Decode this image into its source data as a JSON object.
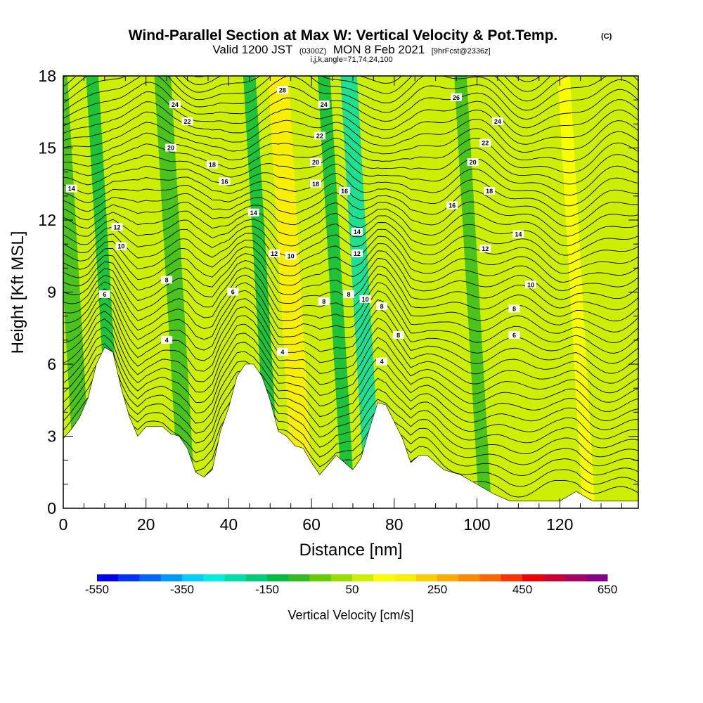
{
  "title": {
    "main": "Wind-Parallel Section at Max W: Vertical Velocity & Pot.Temp.",
    "copyright": "(C)",
    "valid_prefix": "Valid 1200 JST",
    "valid_utc": "(0300Z)",
    "valid_date": "MON 8 Feb 2021",
    "forecast": "[9hrFcst@2336z]",
    "params": "i,j,k,angle=71,74,24,100"
  },
  "chart_data": {
    "type": "heatmap",
    "xlabel": "Distance [nm]",
    "ylabel": "Height [Kft MSL]",
    "xlim": [
      0,
      139
    ],
    "ylim": [
      0,
      18
    ],
    "x_ticks": [
      "0",
      "20",
      "40",
      "60",
      "80",
      "100",
      "120"
    ],
    "x_tick_values": [
      0,
      20,
      40,
      60,
      80,
      100,
      120
    ],
    "y_ticks": [
      "0",
      "3",
      "6",
      "9",
      "12",
      "15",
      "18"
    ],
    "y_tick_values": [
      0,
      3,
      6,
      9,
      12,
      15,
      18
    ],
    "terrain_profile": {
      "distance_nm": [
        0,
        2,
        4,
        6,
        8,
        10,
        12,
        14,
        16,
        18,
        20,
        22,
        24,
        26,
        28,
        30,
        32,
        34,
        36,
        38,
        40,
        42,
        44,
        46,
        48,
        50,
        52,
        54,
        56,
        58,
        60,
        62,
        64,
        66,
        68,
        70,
        72,
        74,
        76,
        78,
        80,
        82,
        84,
        86,
        88,
        90,
        92,
        94,
        96,
        98,
        100,
        104,
        108,
        112,
        116,
        120,
        124,
        128,
        132,
        136,
        139
      ],
      "height_kft": [
        2.9,
        3.3,
        3.8,
        4.6,
        6.0,
        6.7,
        6.5,
        5.0,
        3.8,
        3.0,
        3.4,
        3.4,
        3.4,
        3.1,
        3.0,
        2.5,
        1.5,
        1.3,
        1.6,
        3.2,
        4.2,
        5.5,
        6.0,
        6.0,
        5.5,
        4.5,
        3.2,
        3.0,
        2.6,
        2.5,
        1.9,
        1.4,
        1.8,
        2.2,
        1.9,
        1.6,
        2.1,
        3.3,
        4.4,
        4.3,
        3.6,
        2.9,
        1.9,
        2.2,
        2.2,
        1.9,
        1.6,
        1.5,
        1.4,
        1.2,
        1.0,
        0.6,
        0.3,
        0.3,
        0.3,
        0.3,
        0.7,
        0.3,
        0.3,
        0.3,
        0.3
      ]
    },
    "vertical_velocity_bands": [
      {
        "center_nm": 2,
        "width_nm": 4,
        "value_cms": -100
      },
      {
        "center_nm": 10,
        "width_nm": 3,
        "value_cms": -150
      },
      {
        "center_nm": 16,
        "width_nm": 4,
        "value_cms": 50
      },
      {
        "center_nm": 27,
        "width_nm": 4,
        "value_cms": -100
      },
      {
        "center_nm": 34,
        "width_nm": 4,
        "value_cms": 50
      },
      {
        "center_nm": 48,
        "width_nm": 3,
        "value_cms": -150
      },
      {
        "center_nm": 55,
        "width_nm": 5,
        "value_cms": 150
      },
      {
        "center_nm": 66,
        "width_nm": 3,
        "value_cms": -150
      },
      {
        "center_nm": 72,
        "width_nm": 4,
        "value_cms": -250
      },
      {
        "center_nm": 82,
        "width_nm": 4,
        "value_cms": 50
      },
      {
        "center_nm": 99,
        "width_nm": 3,
        "value_cms": -100
      },
      {
        "center_nm": 110,
        "width_nm": 5,
        "value_cms": 50
      },
      {
        "center_nm": 124,
        "width_nm": 3,
        "value_cms": 100
      }
    ],
    "contour_labels": [
      {
        "x_nm": 53,
        "y_kft": 17.4,
        "text": "28"
      },
      {
        "x_nm": 27,
        "y_kft": 16.8,
        "text": "24"
      },
      {
        "x_nm": 30,
        "y_kft": 16.1,
        "text": "22"
      },
      {
        "x_nm": 26,
        "y_kft": 15.0,
        "text": "20"
      },
      {
        "x_nm": 36,
        "y_kft": 14.3,
        "text": "18"
      },
      {
        "x_nm": 39,
        "y_kft": 13.6,
        "text": "16"
      },
      {
        "x_nm": 2,
        "y_kft": 13.3,
        "text": "14"
      },
      {
        "x_nm": 46,
        "y_kft": 12.3,
        "text": "14"
      },
      {
        "x_nm": 13,
        "y_kft": 11.7,
        "text": "12"
      },
      {
        "x_nm": 14,
        "y_kft": 10.9,
        "text": "10"
      },
      {
        "x_nm": 51,
        "y_kft": 10.6,
        "text": "12"
      },
      {
        "x_nm": 55,
        "y_kft": 10.5,
        "text": "10"
      },
      {
        "x_nm": 25,
        "y_kft": 9.5,
        "text": "8"
      },
      {
        "x_nm": 41,
        "y_kft": 9.0,
        "text": "6"
      },
      {
        "x_nm": 10,
        "y_kft": 8.9,
        "text": "6"
      },
      {
        "x_nm": 25,
        "y_kft": 7.0,
        "text": "4"
      },
      {
        "x_nm": 53,
        "y_kft": 6.5,
        "text": "4"
      },
      {
        "x_nm": 63,
        "y_kft": 16.8,
        "text": "24"
      },
      {
        "x_nm": 62,
        "y_kft": 15.5,
        "text": "22"
      },
      {
        "x_nm": 61,
        "y_kft": 14.4,
        "text": "20"
      },
      {
        "x_nm": 61,
        "y_kft": 13.5,
        "text": "18"
      },
      {
        "x_nm": 68,
        "y_kft": 13.2,
        "text": "16"
      },
      {
        "x_nm": 71,
        "y_kft": 11.5,
        "text": "14"
      },
      {
        "x_nm": 71,
        "y_kft": 10.6,
        "text": "12"
      },
      {
        "x_nm": 63,
        "y_kft": 8.6,
        "text": "8"
      },
      {
        "x_nm": 69,
        "y_kft": 8.9,
        "text": "8"
      },
      {
        "x_nm": 73,
        "y_kft": 8.7,
        "text": "10"
      },
      {
        "x_nm": 77,
        "y_kft": 8.4,
        "text": "8"
      },
      {
        "x_nm": 81,
        "y_kft": 7.2,
        "text": "8"
      },
      {
        "x_nm": 77,
        "y_kft": 6.1,
        "text": "4"
      },
      {
        "x_nm": 95,
        "y_kft": 17.1,
        "text": "26"
      },
      {
        "x_nm": 105,
        "y_kft": 16.1,
        "text": "24"
      },
      {
        "x_nm": 102,
        "y_kft": 15.2,
        "text": "22"
      },
      {
        "x_nm": 99,
        "y_kft": 14.4,
        "text": "20"
      },
      {
        "x_nm": 103,
        "y_kft": 13.2,
        "text": "18"
      },
      {
        "x_nm": 94,
        "y_kft": 12.6,
        "text": "16"
      },
      {
        "x_nm": 110,
        "y_kft": 11.4,
        "text": "14"
      },
      {
        "x_nm": 102,
        "y_kft": 10.8,
        "text": "12"
      },
      {
        "x_nm": 113,
        "y_kft": 9.3,
        "text": "10"
      },
      {
        "x_nm": 109,
        "y_kft": 8.3,
        "text": "8"
      },
      {
        "x_nm": 109,
        "y_kft": 7.2,
        "text": "6"
      }
    ],
    "colorbar": {
      "label": "Vertical Velocity [cm/s]",
      "tick_labels": [
        "-550",
        "-350",
        "-150",
        "50",
        "250",
        "450",
        "650"
      ],
      "tick_values": [
        -550,
        -350,
        -150,
        50,
        250,
        450,
        650
      ],
      "levels": [
        -550,
        -500,
        -450,
        -400,
        -350,
        -300,
        -250,
        -200,
        -150,
        -100,
        -50,
        0,
        50,
        100,
        150,
        200,
        250,
        300,
        350,
        400,
        450,
        500,
        550,
        600,
        650
      ],
      "colors": [
        "#0000ee",
        "#0033ff",
        "#0066ff",
        "#0099ff",
        "#00ccff",
        "#00eedd",
        "#00ddaa",
        "#00cc77",
        "#00bb44",
        "#33bb22",
        "#66cc00",
        "#99dd00",
        "#ccee00",
        "#ffff00",
        "#ffee00",
        "#ffcc00",
        "#ffaa00",
        "#ff8800",
        "#ff6600",
        "#ff3300",
        "#ee0000",
        "#cc0033",
        "#aa0066",
        "#880088"
      ]
    }
  }
}
